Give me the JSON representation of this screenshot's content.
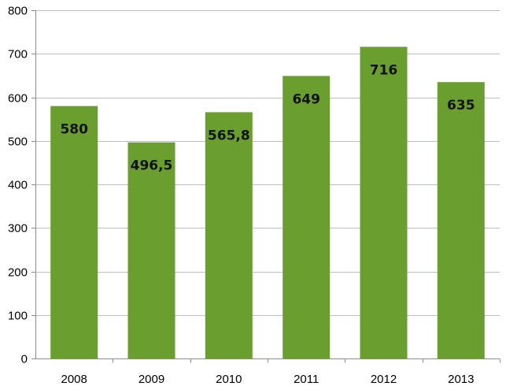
{
  "chart_data": {
    "type": "bar",
    "title": "",
    "xlabel": "",
    "ylabel": "",
    "categories": [
      "2008",
      "2009",
      "2010",
      "2011",
      "2012",
      "2013"
    ],
    "values": [
      580,
      496.5,
      565.8,
      649,
      716,
      635
    ],
    "data_labels": [
      "580",
      "496,5",
      "565,8",
      "649",
      "716",
      "635"
    ],
    "ylim": [
      0,
      800
    ],
    "yticks": [
      0,
      100,
      200,
      300,
      400,
      500,
      600,
      700,
      800
    ],
    "ytick_labels": [
      "0",
      "100",
      "200",
      "300",
      "400",
      "500",
      "600",
      "700",
      "800"
    ],
    "grid": true,
    "legend": "none",
    "colors": {
      "bar": "#6a9e2f",
      "grid": "#bfbfbf",
      "axis": "#8c8c8c",
      "label": "#111111"
    }
  }
}
